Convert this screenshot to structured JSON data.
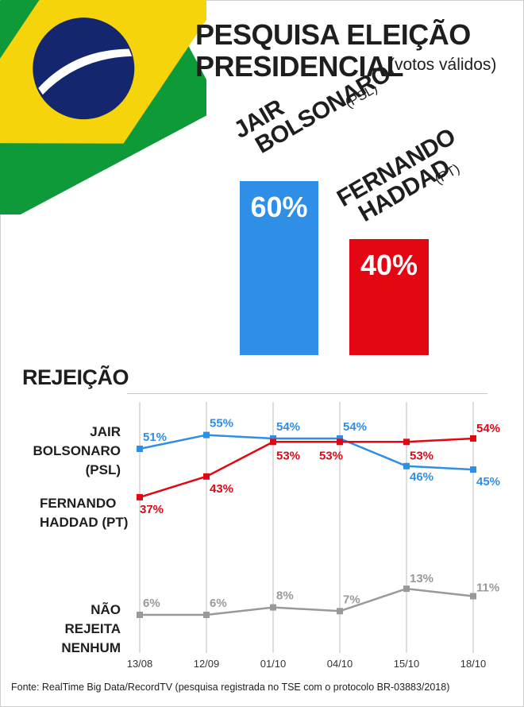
{
  "header": {
    "title_line1": "PESQUISA ELEIÇÃO",
    "title_line2": "PRESIDENCIAL",
    "subtitle": "(votos válidos)"
  },
  "vote_bars": {
    "bolsonaro": {
      "name_line1": "JAIR",
      "name_line2": "BOLSONARO",
      "party": "(PSL)",
      "value_label": "60%",
      "value": 60,
      "color": "#2f8ee6"
    },
    "haddad": {
      "name_line1": "FERNANDO",
      "name_line2": "HADDAD",
      "party": "(PT)",
      "value_label": "40%",
      "value": 40,
      "color": "#e30613"
    }
  },
  "rejection": {
    "section_title": "REJEIÇÃO",
    "labels": {
      "bolsonaro": [
        "JAIR",
        "BOLSONARO",
        "(PSL)"
      ],
      "haddad": [
        "FERNANDO",
        "HADDAD (PT)"
      ],
      "none": [
        "NÃO REJEITA",
        "NENHUM"
      ]
    }
  },
  "chart_data": [
    {
      "type": "bar",
      "title": "PESQUISA ELEIÇÃO PRESIDENCIAL",
      "subtitle": "(votos válidos)",
      "categories": [
        "JAIR BOLSONARO (PSL)",
        "FERNANDO HADDAD (PT)"
      ],
      "values": [
        60,
        40
      ],
      "colors": [
        "#2f8ee6",
        "#e30613"
      ],
      "ylim": [
        0,
        100
      ]
    },
    {
      "type": "line",
      "title": "REJEIÇÃO",
      "x": [
        "13/08",
        "12/09",
        "01/10",
        "04/10",
        "15/10",
        "18/10"
      ],
      "grid": "vertical",
      "series": [
        {
          "key": "bolsonaro",
          "name": "JAIR BOLSONARO (PSL)",
          "color": "#2f8ee6",
          "values": [
            51,
            55,
            54,
            54,
            46,
            45
          ],
          "labels": [
            "51%",
            "55%",
            "54%",
            "54%",
            "46%",
            "45%"
          ]
        },
        {
          "key": "haddad",
          "name": "FERNANDO HADDAD (PT)",
          "color": "#e30613",
          "values": [
            37,
            43,
            53,
            53,
            53,
            54
          ],
          "labels": [
            "37%",
            "43%",
            "53%",
            "53%",
            "53%",
            "54%"
          ]
        },
        {
          "key": "none",
          "name": "NÃO REJEITA NENHUM",
          "color": "#999999",
          "values": [
            6,
            6,
            8,
            7,
            13,
            11
          ],
          "labels": [
            "6%",
            "6%",
            "8%",
            "7%",
            "13%",
            "11%"
          ]
        }
      ]
    }
  ],
  "footer": {
    "source": "Fonte: RealTime Big Data/RecordTV (pesquisa registrada no TSE com o protocolo BR-03883/2018)"
  }
}
